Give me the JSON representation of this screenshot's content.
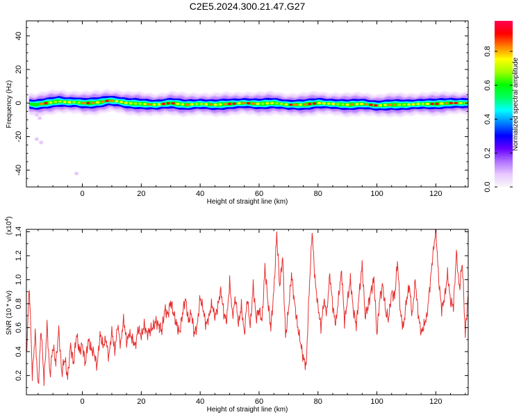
{
  "title": "C2E5.2024.300.21.47.G27",
  "chart_data": [
    {
      "type": "heatmap",
      "xlabel": "Height of straight line (km)",
      "ylabel": "Frequency (Hz)",
      "xlim": [
        -19,
        131
      ],
      "ylim": [
        -50,
        49
      ],
      "xticks": [
        0,
        20,
        40,
        60,
        80,
        100,
        120
      ],
      "yticks": [
        -40,
        -20,
        0,
        20,
        40
      ],
      "grid": false,
      "ridge": {
        "x": [
          -18,
          -16,
          -14,
          -12,
          -10,
          -8,
          -5,
          -2,
          0,
          3,
          6,
          9,
          12,
          15,
          20,
          25,
          30,
          35,
          40,
          45,
          50,
          55,
          60,
          65,
          70,
          75,
          80,
          85,
          90,
          95,
          100,
          105,
          110,
          115,
          120,
          125,
          130
        ],
        "frequency": [
          -0.5,
          -1,
          -0.5,
          0,
          0.5,
          1,
          0.5,
          0.5,
          0,
          0,
          0.5,
          1.5,
          1,
          0,
          -0.5,
          -1,
          0,
          -1,
          -0.5,
          -1,
          -0.5,
          0,
          -0.5,
          0,
          -1,
          -1,
          0,
          -0.5,
          -1,
          -0.5,
          -1.5,
          -1,
          -1,
          -0.5,
          -0.5,
          0,
          0
        ]
      },
      "outliers": [
        {
          "x": -15.5,
          "frequency": -21.5
        },
        {
          "x": -14.0,
          "frequency": -23.5
        },
        {
          "x": -2.0,
          "frequency": -42.0
        },
        {
          "x": -14.5,
          "frequency": -9.0
        },
        {
          "x": -15.5,
          "frequency": -7.0
        }
      ],
      "colorbar": {
        "label": "Normalized spectral amplitude",
        "range": [
          0.0,
          0.98
        ],
        "ticks": [
          "0.0",
          "0.2",
          "0.4",
          "0.6",
          "0.8"
        ],
        "tick_values": [
          0.0,
          0.2,
          0.4,
          0.6,
          0.8
        ],
        "colors": [
          "#f8f8f8",
          "#e8c8ff",
          "#b070ff",
          "#6600ff",
          "#0000ff",
          "#0080ff",
          "#00ffff",
          "#00ff60",
          "#00ff00",
          "#a0ff00",
          "#ffff00",
          "#ff8000",
          "#ff0000",
          "#ff0050"
        ]
      }
    },
    {
      "type": "line",
      "xlabel": "Height of straight line (km)",
      "ylabel": "SNR (10 * v/v)",
      "yscale_label": "(x10",
      "yscale_exp": "4",
      "yscale_close": ")",
      "xlim": [
        -19,
        131
      ],
      "ylim": [
        0.04,
        1.42
      ],
      "xticks": [
        0,
        20,
        40,
        60,
        80,
        100,
        120
      ],
      "yticks": [
        0.2,
        0.4,
        0.6,
        0.8,
        1.0,
        1.2,
        1.4
      ],
      "ytick_labels": [
        "0.2",
        "0.4",
        "0.6",
        "0.8",
        "1.0",
        "1.2",
        "1.4"
      ],
      "grid": false,
      "line_color": "#e62e2e",
      "series": [
        {
          "x": [
            -19,
            -18,
            -17,
            -16,
            -15,
            -14,
            -13,
            -12,
            -11,
            -10,
            -9,
            -8,
            -7,
            -6,
            -5,
            -4,
            -3,
            -2,
            -1,
            0,
            1,
            2,
            3,
            4,
            5,
            6,
            7,
            8,
            9,
            10,
            11,
            12,
            13,
            14,
            15,
            16,
            17,
            18,
            19,
            20,
            21,
            22,
            23,
            24,
            25,
            26,
            27,
            28,
            29,
            30,
            31,
            32,
            33,
            34,
            35,
            36,
            37,
            38,
            39,
            40,
            41,
            42,
            43,
            44,
            45,
            46,
            47,
            48,
            49,
            50,
            51,
            52,
            53,
            54,
            55,
            56,
            57,
            58,
            59,
            60,
            61,
            62,
            63,
            64,
            65,
            66,
            67,
            68,
            69,
            70,
            71,
            72,
            73,
            74,
            75,
            76,
            77,
            78,
            79,
            80,
            81,
            82,
            83,
            84,
            85,
            86,
            87,
            88,
            89,
            90,
            91,
            92,
            93,
            94,
            95,
            96,
            97,
            98,
            99,
            100,
            101,
            102,
            103,
            104,
            105,
            106,
            107,
            108,
            109,
            110,
            111,
            112,
            113,
            114,
            115,
            116,
            117,
            118,
            119,
            120,
            121,
            122,
            123,
            124,
            125,
            126,
            127,
            128,
            129,
            130,
            131
          ],
          "y": [
            0.35,
            0.95,
            0.2,
            0.55,
            0.1,
            0.6,
            0.15,
            0.62,
            0.2,
            0.45,
            0.3,
            0.58,
            0.22,
            0.35,
            0.18,
            0.45,
            0.3,
            0.55,
            0.4,
            0.45,
            0.3,
            0.5,
            0.42,
            0.38,
            0.28,
            0.55,
            0.45,
            0.5,
            0.35,
            0.58,
            0.4,
            0.62,
            0.45,
            0.68,
            0.48,
            0.55,
            0.5,
            0.45,
            0.6,
            0.52,
            0.62,
            0.55,
            0.58,
            0.6,
            0.65,
            0.62,
            0.58,
            0.75,
            0.7,
            0.82,
            0.72,
            0.62,
            0.55,
            0.72,
            0.85,
            0.65,
            0.72,
            0.55,
            0.62,
            0.85,
            0.75,
            0.62,
            0.7,
            0.8,
            0.68,
            0.78,
            0.92,
            0.72,
            0.65,
            0.98,
            0.7,
            0.85,
            0.62,
            0.78,
            0.55,
            0.85,
            0.6,
            0.95,
            0.68,
            0.75,
            0.65,
            1.1,
            0.82,
            0.6,
            0.9,
            1.38,
            0.95,
            1.2,
            0.52,
            0.75,
            1.05,
            0.82,
            0.62,
            0.48,
            0.35,
            0.28,
            0.9,
            1.4,
            1.0,
            0.78,
            0.6,
            0.82,
            0.72,
            1.05,
            0.78,
            0.62,
            0.85,
            1.08,
            0.65,
            0.82,
            1.0,
            0.75,
            0.62,
            0.88,
            1.12,
            0.7,
            0.78,
            0.9,
            1.0,
            0.55,
            0.85,
            0.95,
            0.72,
            0.68,
            0.9,
            0.85,
            1.15,
            0.72,
            0.6,
            0.82,
            0.95,
            0.7,
            1.0,
            0.72,
            0.55,
            0.62,
            0.7,
            0.95,
            1.2,
            1.42,
            1.0,
            0.75,
            0.85,
            1.05,
            0.82,
            0.78,
            1.22,
            0.92,
            1.15,
            0.55,
            0.88
          ]
        }
      ]
    }
  ]
}
